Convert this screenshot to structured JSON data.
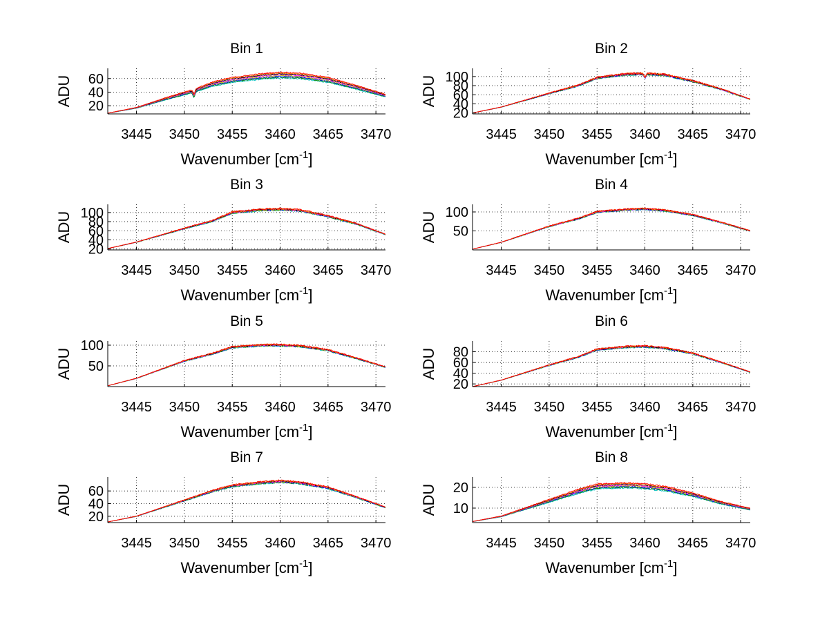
{
  "figure": {
    "background": "#ffffff",
    "grid": "dotted",
    "line_colors": [
      "#00c0c0",
      "#008000",
      "#0000ff",
      "#c0c000",
      "#ff00ff",
      "#000000",
      "#ff8000",
      "#ff0000"
    ]
  },
  "chart_data": [
    {
      "type": "line",
      "title": "Bin 1",
      "xlabel": "Wavenumber [cm",
      "xlabel_sup": "-1",
      "xlabel_tail": "]",
      "ylabel": "ADU",
      "xlim": [
        3442,
        3471
      ],
      "ylim": [
        8,
        75
      ],
      "xticks": [
        3445,
        3450,
        3455,
        3460,
        3465,
        3470
      ],
      "yticks": [
        20,
        40,
        60
      ],
      "profile": [
        [
          3442,
          9
        ],
        [
          3445,
          17
        ],
        [
          3448,
          30
        ],
        [
          3450,
          38
        ],
        [
          3451,
          42
        ],
        [
          3453,
          52
        ],
        [
          3455,
          58
        ],
        [
          3458,
          63
        ],
        [
          3460,
          65
        ],
        [
          3462,
          64
        ],
        [
          3465,
          58
        ],
        [
          3468,
          47
        ],
        [
          3471,
          35
        ]
      ],
      "dips": [
        [
          3451,
          7
        ]
      ],
      "series_spread": 5,
      "noise": 1.0
    },
    {
      "type": "line",
      "title": "Bin 2",
      "xlabel": "Wavenumber [cm",
      "xlabel_sup": "-1",
      "xlabel_tail": "]",
      "ylabel": "ADU",
      "xlim": [
        3442,
        3471
      ],
      "ylim": [
        18,
        118
      ],
      "xticks": [
        3445,
        3450,
        3455,
        3460,
        3465,
        3470
      ],
      "yticks": [
        20,
        40,
        60,
        80,
        100
      ],
      "profile": [
        [
          3442,
          20
        ],
        [
          3445,
          33
        ],
        [
          3450,
          63
        ],
        [
          3453,
          80
        ],
        [
          3455,
          97
        ],
        [
          3458,
          105
        ],
        [
          3460,
          106
        ],
        [
          3462,
          104
        ],
        [
          3465,
          90
        ],
        [
          3468,
          72
        ],
        [
          3471,
          50
        ]
      ],
      "dips": [
        [
          3460,
          8
        ]
      ],
      "series_spread": 2,
      "noise": 2.0
    },
    {
      "type": "line",
      "title": "Bin 3",
      "xlabel": "Wavenumber [cm",
      "xlabel_sup": "-1",
      "xlabel_tail": "]",
      "ylabel": "ADU",
      "xlim": [
        3442,
        3471
      ],
      "ylim": [
        18,
        118
      ],
      "xticks": [
        3445,
        3450,
        3455,
        3460,
        3465,
        3470
      ],
      "yticks": [
        20,
        40,
        60,
        80,
        100
      ],
      "profile": [
        [
          3442,
          21
        ],
        [
          3445,
          35
        ],
        [
          3450,
          65
        ],
        [
          3453,
          82
        ],
        [
          3455,
          100
        ],
        [
          3458,
          106
        ],
        [
          3460,
          107
        ],
        [
          3462,
          105
        ],
        [
          3465,
          92
        ],
        [
          3468,
          75
        ],
        [
          3471,
          52
        ]
      ],
      "dips": [],
      "series_spread": 2,
      "noise": 2.0
    },
    {
      "type": "line",
      "title": "Bin 4",
      "xlabel": "Wavenumber [cm",
      "xlabel_sup": "-1",
      "xlabel_tail": "]",
      "ylabel": "ADU",
      "xlim": [
        3442,
        3471
      ],
      "ylim": [
        0,
        120
      ],
      "xticks": [
        3445,
        3450,
        3455,
        3460,
        3465,
        3470
      ],
      "yticks": [
        50,
        100
      ],
      "profile": [
        [
          3442,
          2
        ],
        [
          3445,
          20
        ],
        [
          3450,
          62
        ],
        [
          3453,
          82
        ],
        [
          3455,
          100
        ],
        [
          3458,
          106
        ],
        [
          3460,
          108
        ],
        [
          3462,
          104
        ],
        [
          3465,
          92
        ],
        [
          3468,
          72
        ],
        [
          3471,
          50
        ]
      ],
      "dips": [],
      "series_spread": 2,
      "noise": 2.0
    },
    {
      "type": "line",
      "title": "Bin 5",
      "xlabel": "Wavenumber [cm",
      "xlabel_sup": "-1",
      "xlabel_tail": "]",
      "ylabel": "ADU",
      "xlim": [
        3442,
        3471
      ],
      "ylim": [
        0,
        110
      ],
      "xticks": [
        3445,
        3450,
        3455,
        3460,
        3465,
        3470
      ],
      "yticks": [
        50,
        100
      ],
      "profile": [
        [
          3442,
          2
        ],
        [
          3445,
          20
        ],
        [
          3450,
          62
        ],
        [
          3453,
          80
        ],
        [
          3455,
          95
        ],
        [
          3458,
          100
        ],
        [
          3460,
          100
        ],
        [
          3462,
          98
        ],
        [
          3465,
          88
        ],
        [
          3468,
          68
        ],
        [
          3471,
          47
        ]
      ],
      "dips": [],
      "series_spread": 2,
      "noise": 2.0
    },
    {
      "type": "line",
      "title": "Bin 6",
      "xlabel": "Wavenumber [cm",
      "xlabel_sup": "-1",
      "xlabel_tail": "]",
      "ylabel": "ADU",
      "xlim": [
        3442,
        3471
      ],
      "ylim": [
        15,
        100
      ],
      "xticks": [
        3445,
        3450,
        3455,
        3460,
        3465,
        3470
      ],
      "yticks": [
        20,
        40,
        60,
        80
      ],
      "profile": [
        [
          3442,
          15
        ],
        [
          3445,
          27
        ],
        [
          3450,
          55
        ],
        [
          3453,
          70
        ],
        [
          3455,
          84
        ],
        [
          3458,
          89
        ],
        [
          3460,
          90
        ],
        [
          3462,
          87
        ],
        [
          3465,
          77
        ],
        [
          3468,
          60
        ],
        [
          3471,
          42
        ]
      ],
      "dips": [],
      "series_spread": 1.5,
      "noise": 1.5
    },
    {
      "type": "line",
      "title": "Bin 7",
      "xlabel": "Wavenumber [cm",
      "xlabel_sup": "-1",
      "xlabel_tail": "]",
      "ylabel": "ADU",
      "xlim": [
        3442,
        3471
      ],
      "ylim": [
        10,
        82
      ],
      "xticks": [
        3445,
        3450,
        3455,
        3460,
        3465,
        3470
      ],
      "yticks": [
        20,
        40,
        60
      ],
      "profile": [
        [
          3442,
          11
        ],
        [
          3445,
          20
        ],
        [
          3450,
          45
        ],
        [
          3453,
          60
        ],
        [
          3455,
          68
        ],
        [
          3458,
          73
        ],
        [
          3460,
          75
        ],
        [
          3462,
          73
        ],
        [
          3465,
          65
        ],
        [
          3468,
          50
        ],
        [
          3471,
          34
        ]
      ],
      "dips": [],
      "series_spread": 2,
      "noise": 1.2
    },
    {
      "type": "line",
      "title": "Bin 8",
      "xlabel": "Wavenumber [cm",
      "xlabel_sup": "-1",
      "xlabel_tail": "]",
      "ylabel": "ADU",
      "xlim": [
        3442,
        3471
      ],
      "ylim": [
        3,
        25
      ],
      "xticks": [
        3445,
        3450,
        3455,
        3460,
        3465,
        3470
      ],
      "yticks": [
        10,
        20
      ],
      "profile": [
        [
          3442,
          3.5
        ],
        [
          3445,
          6
        ],
        [
          3450,
          13.5
        ],
        [
          3453,
          18
        ],
        [
          3455,
          20.5
        ],
        [
          3458,
          21
        ],
        [
          3460,
          20.5
        ],
        [
          3462,
          19.5
        ],
        [
          3465,
          16.5
        ],
        [
          3468,
          12.5
        ],
        [
          3471,
          9.5
        ]
      ],
      "dips": [],
      "series_spread": 1.5,
      "noise": 0.4
    }
  ]
}
